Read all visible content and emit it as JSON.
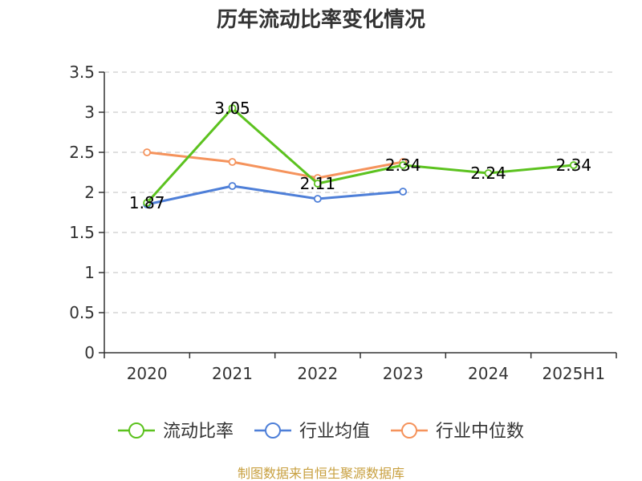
{
  "chart_data": {
    "type": "line",
    "title": "历年流动比率变化情况",
    "xlabel": "",
    "ylabel": "",
    "categories": [
      "2020",
      "2021",
      "2022",
      "2023",
      "2024",
      "2025H1"
    ],
    "ylim": [
      0,
      3.5
    ],
    "yticks": [
      "0",
      "0.5",
      "1",
      "1.5",
      "2",
      "2.5",
      "3",
      "3.5"
    ],
    "grid": true,
    "legend_position": "bottom",
    "series": [
      {
        "name": "流动比率",
        "color": "#5cc21f",
        "values": [
          1.87,
          3.05,
          2.11,
          2.34,
          2.24,
          2.34
        ],
        "labels": [
          "1.87",
          "3.05",
          "2.11",
          "2.34",
          "2.24",
          "2.34"
        ]
      },
      {
        "name": "行业均值",
        "color": "#4e7fd8",
        "values": [
          1.85,
          2.08,
          1.92,
          2.01,
          null,
          null
        ]
      },
      {
        "name": "行业中位数",
        "color": "#f5935c",
        "values": [
          2.5,
          2.38,
          2.18,
          2.38,
          null,
          null
        ]
      }
    ]
  },
  "source_note": "制图数据来自恒生聚源数据库",
  "colors": {
    "axis": "#333333",
    "grid": "#cccccc",
    "source_text": "#c8a040"
  }
}
